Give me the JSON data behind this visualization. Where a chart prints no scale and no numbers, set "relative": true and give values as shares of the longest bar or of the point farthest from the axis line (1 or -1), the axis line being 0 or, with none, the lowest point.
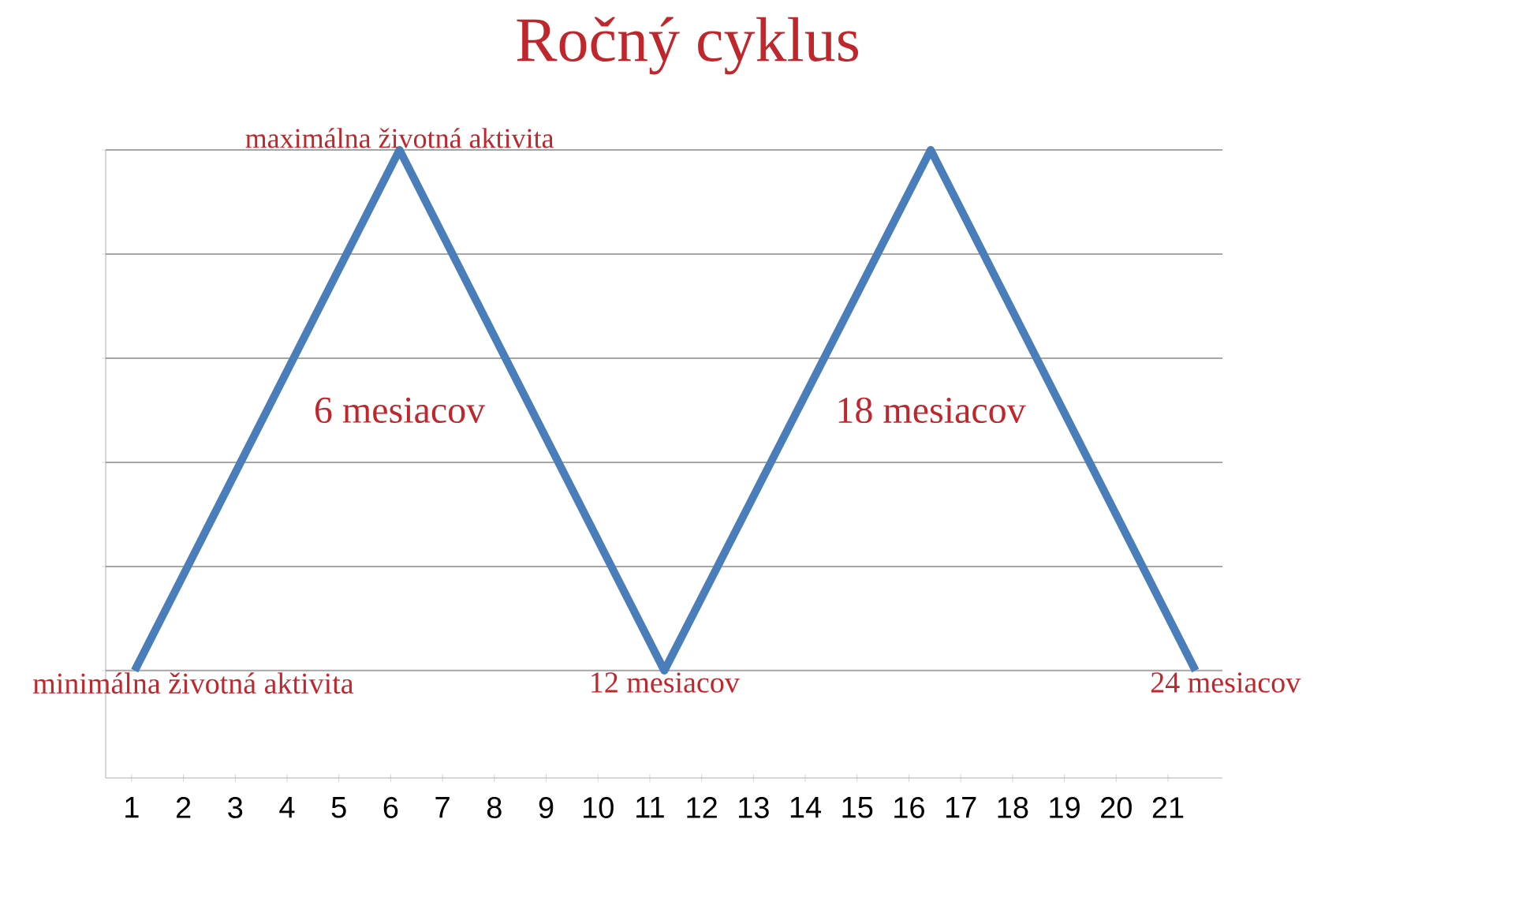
{
  "chart_data": {
    "type": "line",
    "title": "Ročný cyklus",
    "relative": true,
    "grid": "y",
    "marker": "none",
    "line_style": "solid",
    "xlim": [
      0.5,
      22.05
    ],
    "xticks": [
      1,
      2,
      3,
      4,
      5,
      6,
      7,
      8,
      9,
      10,
      11,
      12,
      13,
      14,
      15,
      16,
      17,
      18,
      19,
      20,
      21
    ],
    "series": [
      {
        "color": "#4a7ebb",
        "x": [
          1.06,
          6.17,
          11.28,
          16.42,
          21.53
        ],
        "values": [
          0.171,
          1,
          0.171,
          1,
          0.171
        ]
      }
    ],
    "annotations": [
      {
        "text": "maximálna životná aktivita",
        "x": 6.17,
        "y": 1
      },
      {
        "text": "minimálna životná aktivita",
        "x": 1.06,
        "y": 0.171
      },
      "6 mesiacov",
      {
        "text": "12 mesiacov",
        "x": 11.28,
        "y": 0.171
      },
      "18 mesiacov",
      {
        "text": "24 mesiacov",
        "x": 21.53,
        "y": 0.171
      }
    ]
  }
}
